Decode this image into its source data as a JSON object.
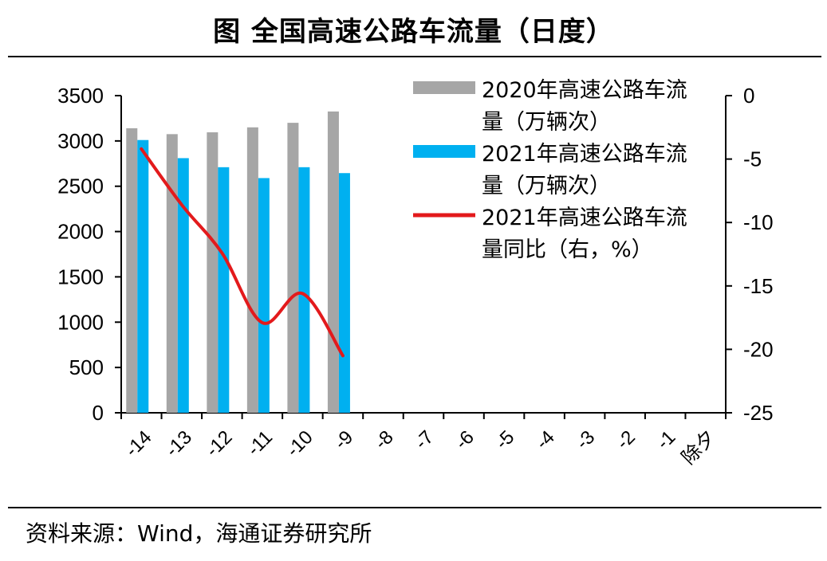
{
  "header": {
    "title": "图  全国高速公路车流量（日度）"
  },
  "footer": {
    "source": "资料来源：Wind，海通证券研究所"
  },
  "chart_data": {
    "type": "bar",
    "categories": [
      "-14",
      "-13",
      "-12",
      "-11",
      "-10",
      "-9",
      "-8",
      "-7",
      "-6",
      "-5",
      "-4",
      "-3",
      "-2",
      "-1",
      "除夕"
    ],
    "series": [
      {
        "name": "2020年高速公路车流量（万辆次）",
        "type": "bar",
        "axis": "left",
        "color": "#a6a6a6",
        "values": [
          3140,
          3075,
          3095,
          3150,
          3200,
          3325,
          null,
          null,
          null,
          null,
          null,
          null,
          null,
          null,
          null
        ]
      },
      {
        "name": "2021年高速公路车流量（万辆次）",
        "type": "bar",
        "axis": "left",
        "color": "#00b0f0",
        "values": [
          3010,
          2810,
          2710,
          2590,
          2710,
          2645,
          null,
          null,
          null,
          null,
          null,
          null,
          null,
          null,
          null
        ]
      },
      {
        "name": "2021年高速公路车流量同比（右，%）",
        "type": "line",
        "axis": "right",
        "color": "#e31a1c",
        "values": [
          -4.2,
          -8.6,
          -12.4,
          -17.9,
          -15.6,
          -20.5,
          null,
          null,
          null,
          null,
          null,
          null,
          null,
          null,
          null
        ]
      }
    ],
    "legend_lines": [
      [
        "2020年高速公路车流",
        "量（万辆次）"
      ],
      [
        "2021年高速公路车流",
        "量（万辆次）"
      ],
      [
        "2021年高速公路车流",
        "量同比（右，%）"
      ]
    ],
    "y_left": {
      "lim": [
        0,
        3500
      ],
      "ticks": [
        "0",
        "500",
        "1000",
        "1500",
        "2000",
        "2500",
        "3000",
        "3500"
      ]
    },
    "y_right": {
      "lim": [
        -25,
        0
      ],
      "ticks": [
        "-25",
        "-20",
        "-15",
        "-10",
        "-5",
        "0"
      ]
    },
    "grid": false,
    "legend_position": "top-right"
  }
}
